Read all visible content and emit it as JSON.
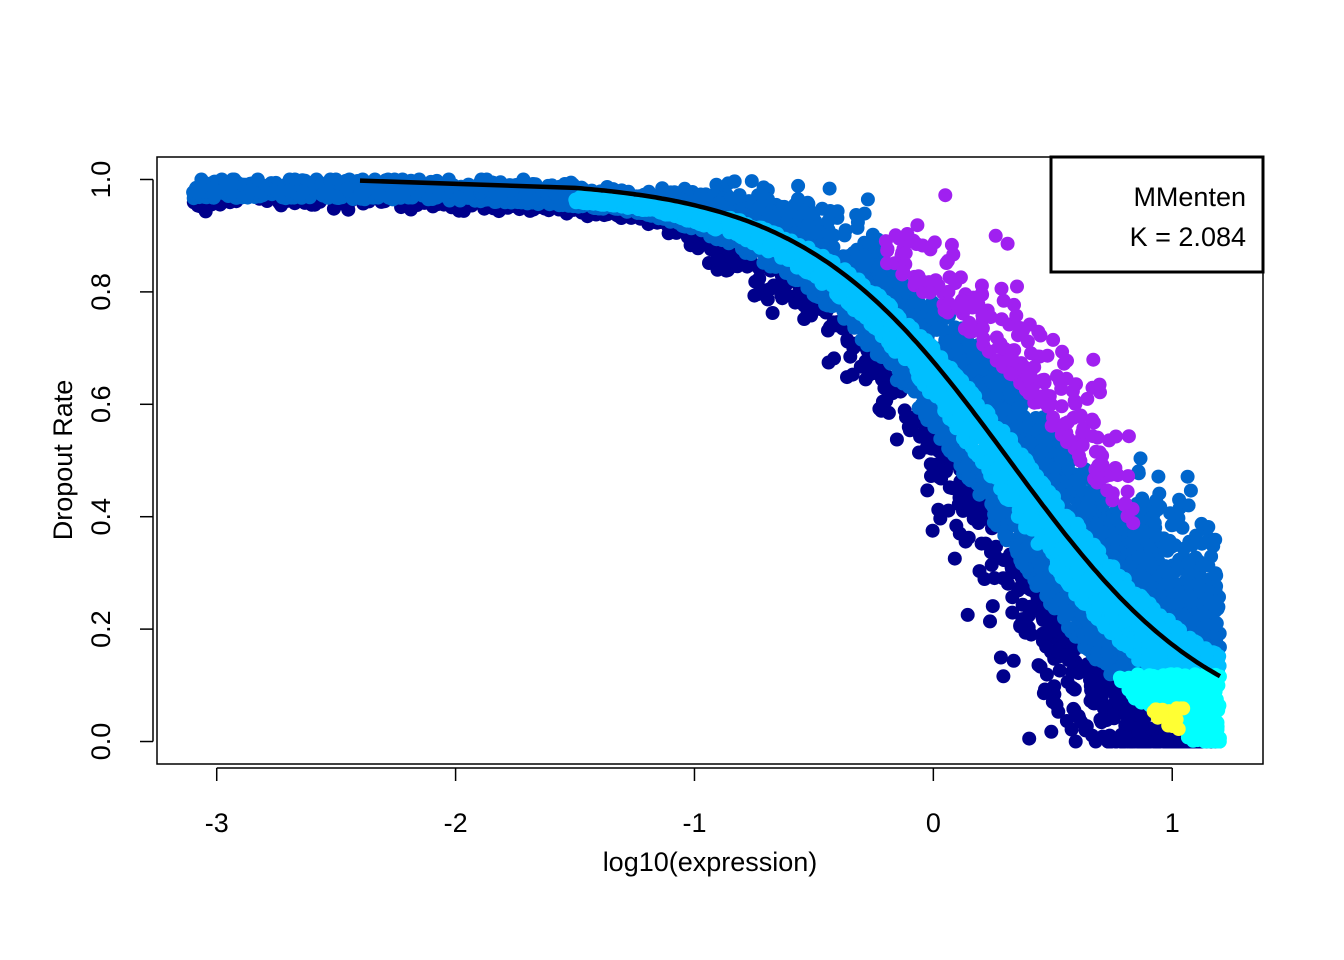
{
  "chart_data": {
    "type": "scatter",
    "title": "",
    "xlabel": "log10(expression)",
    "ylabel": "Dropout Rate",
    "xlim": [
      -3.25,
      1.38
    ],
    "ylim": [
      -0.04,
      1.04
    ],
    "x_ticks": [
      -3,
      -2,
      -1,
      0,
      1
    ],
    "x_tick_labels": [
      "-3",
      "-2",
      "-1",
      "0",
      "1"
    ],
    "y_ticks": [
      0.0,
      0.2,
      0.4,
      0.6,
      0.8,
      1.0
    ],
    "y_tick_labels": [
      "0.0",
      "0.2",
      "0.4",
      "0.6",
      "0.8",
      "1.0"
    ],
    "grid": false,
    "legend": {
      "position": "top-right",
      "lines": [
        "MMenten",
        "K = 2.084"
      ]
    },
    "fit_curve": {
      "model": "Michaelis-Menten",
      "K": 2.084,
      "color": "#000000",
      "x_range": [
        -1.5,
        1.2
      ]
    },
    "point_range": {
      "x_min": -3.1,
      "x_max": 1.2
    },
    "colors": {
      "density_low": "#00008B",
      "density_mid_blue": "#0066CC",
      "density_cyan": "#00BFFF",
      "density_aqua": "#00FFFF",
      "density_high": "#FFFF33",
      "outlier": "#A020F0"
    }
  }
}
